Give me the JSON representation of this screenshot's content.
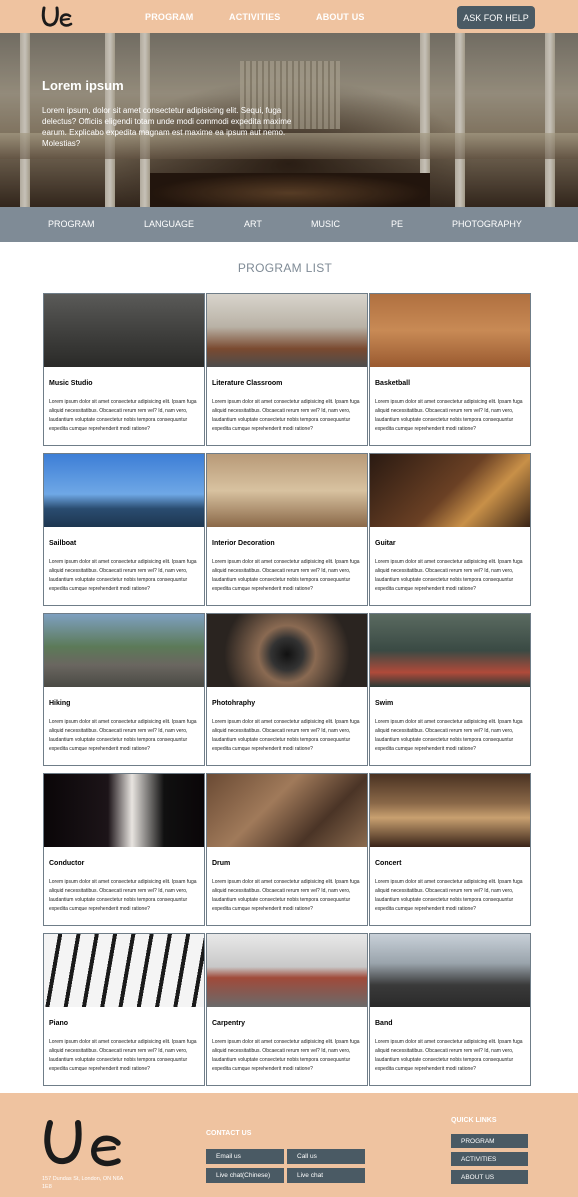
{
  "header": {
    "logo_icon": "ue-logo-icon",
    "nav": [
      "PROGRAM",
      "ACTIVITIES",
      "ABOUT US"
    ],
    "help_button": "ASK FOR HELP"
  },
  "hero": {
    "title": "Lorem ipsum",
    "text": "Lorem ipsum, dolor sit amet consectetur adipisicing elit. Sequi, fuga delectus? Officiis eligendi totam unde modi commodi expedita maxime earum. Explicabo expedita magnam est maxime ea ipsum aut nemo. Molestias?"
  },
  "subnav": [
    "PROGRAM",
    "LANGUAGE",
    "ART",
    "MUSIC",
    "PE",
    "PHOTOGRAPHY"
  ],
  "program_list": {
    "title": "PROGRAM LIST",
    "description": "Lorem ipsum dolor sit amet consectetur adipisicing elit. Ipsam fuga aliquid necessitatibus. Obcaecati rerum rem vel? Id, nam vero, laudantium voluptate consectetur nobis tempora consequuntur expedita cumque reprehenderit modi ratione?",
    "items": [
      {
        "title": "Music Studio"
      },
      {
        "title": "Literature Classroom"
      },
      {
        "title": "Basketball"
      },
      {
        "title": "Sailboat"
      },
      {
        "title": "Interior Decoration"
      },
      {
        "title": "Guitar"
      },
      {
        "title": "Hiking"
      },
      {
        "title": "Photohraphy"
      },
      {
        "title": "Swim"
      },
      {
        "title": "Conductor"
      },
      {
        "title": "Drum"
      },
      {
        "title": "Concert"
      },
      {
        "title": "Piano"
      },
      {
        "title": "Carpentry"
      },
      {
        "title": "Band"
      }
    ]
  },
  "footer": {
    "address": "157 Dundas St, London, ON N6A 1E8",
    "contact_title": "CONTACT US",
    "contact_buttons": [
      "Email us",
      "Call us",
      "Live chat(Chinese)",
      "Live chat"
    ],
    "quick_title": "QUICK LINKS",
    "quick_links": [
      "PROGRAM",
      "ACTIVITIES",
      "ABOUT US"
    ]
  },
  "colors": {
    "header_bg": "#efc3a0",
    "subnav_bg": "#7f8b96",
    "button_bg": "#4a5a64"
  }
}
